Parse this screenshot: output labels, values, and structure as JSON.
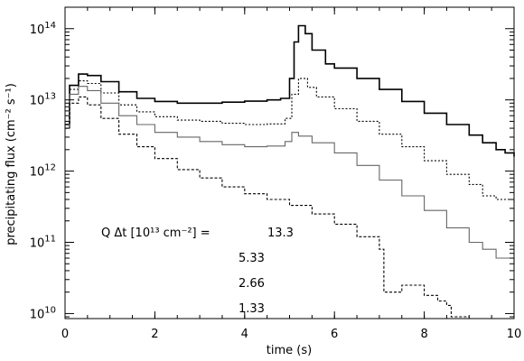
{
  "chart_data": {
    "type": "line",
    "xlabel": "time (s)",
    "ylabel": "precipitating flux (cm⁻² s⁻¹)",
    "xlim": [
      0,
      10
    ],
    "ylim": [
      8500000000.0,
      200000000000000.0
    ],
    "yscale": "log",
    "x_ticks": [
      0,
      2,
      4,
      6,
      8,
      10
    ],
    "x_tick_labels": [
      "0",
      "2",
      "4",
      "6",
      "8",
      "10"
    ],
    "y_ticks": [
      {
        "value": 10000000000.0,
        "base": "10",
        "exp": "10"
      },
      {
        "value": 100000000000.0,
        "base": "10",
        "exp": "11"
      },
      {
        "value": 1000000000000.0,
        "base": "10",
        "exp": "12"
      },
      {
        "value": 10000000000000.0,
        "base": "10",
        "exp": "13"
      },
      {
        "value": 100000000000000.0,
        "base": "10",
        "exp": "14"
      }
    ],
    "grid": false,
    "legend_title": "Q Δt [10¹³ cm⁻²] =",
    "series": [
      {
        "name": "13.3",
        "color": "#000000",
        "stroke_width": 1.6,
        "dash": "",
        "points": [
          [
            0,
            4500000000000.0
          ],
          [
            0.1,
            16000000000000.0
          ],
          [
            0.3,
            23000000000000.0
          ],
          [
            0.5,
            22000000000000.0
          ],
          [
            0.8,
            18000000000000.0
          ],
          [
            1.2,
            13000000000000.0
          ],
          [
            1.6,
            10500000000000.0
          ],
          [
            2.0,
            9500000000000.0
          ],
          [
            2.5,
            9000000000000.0
          ],
          [
            3.0,
            9000000000000.0
          ],
          [
            3.5,
            9300000000000.0
          ],
          [
            4.0,
            9600000000000.0
          ],
          [
            4.5,
            10000000000000.0
          ],
          [
            4.8,
            10500000000000.0
          ],
          [
            5.0,
            20000000000000.0
          ],
          [
            5.1,
            65000000000000.0
          ],
          [
            5.2,
            110000000000000.0
          ],
          [
            5.35,
            85000000000000.0
          ],
          [
            5.5,
            50000000000000.0
          ],
          [
            5.8,
            32000000000000.0
          ],
          [
            6.0,
            28000000000000.0
          ],
          [
            6.5,
            20000000000000.0
          ],
          [
            7.0,
            14000000000000.0
          ],
          [
            7.5,
            9500000000000.0
          ],
          [
            8.0,
            6500000000000.0
          ],
          [
            8.5,
            4500000000000.0
          ],
          [
            9.0,
            3200000000000.0
          ],
          [
            9.3,
            2500000000000.0
          ],
          [
            9.6,
            2000000000000.0
          ],
          [
            9.8,
            1800000000000.0
          ],
          [
            10.0,
            1600000000000.0
          ]
        ]
      },
      {
        "name": "5.33",
        "color": "#000000",
        "stroke_width": 1.1,
        "dash": "2,2",
        "points": [
          [
            0,
            4500000000000.0
          ],
          [
            0.1,
            14000000000000.0
          ],
          [
            0.3,
            18500000000000.0
          ],
          [
            0.5,
            17000000000000.0
          ],
          [
            0.8,
            12500000000000.0
          ],
          [
            1.2,
            8500000000000.0
          ],
          [
            1.6,
            6800000000000.0
          ],
          [
            2.0,
            5800000000000.0
          ],
          [
            2.5,
            5200000000000.0
          ],
          [
            3.0,
            5000000000000.0
          ],
          [
            3.5,
            4700000000000.0
          ],
          [
            4.0,
            4500000000000.0
          ],
          [
            4.5,
            4600000000000.0
          ],
          [
            4.9,
            5500000000000.0
          ],
          [
            5.05,
            12000000000000.0
          ],
          [
            5.2,
            20000000000000.0
          ],
          [
            5.4,
            15000000000000.0
          ],
          [
            5.6,
            11000000000000.0
          ],
          [
            6.0,
            7500000000000.0
          ],
          [
            6.5,
            5000000000000.0
          ],
          [
            7.0,
            3300000000000.0
          ],
          [
            7.5,
            2200000000000.0
          ],
          [
            8.0,
            1400000000000.0
          ],
          [
            8.5,
            900000000000.0
          ],
          [
            9.0,
            650000000000.0
          ],
          [
            9.3,
            450000000000.0
          ],
          [
            9.6,
            400000000000.0
          ],
          [
            10.0,
            350000000000.0
          ]
        ]
      },
      {
        "name": "2.66",
        "color": "#666666",
        "stroke_width": 1.1,
        "dash": "",
        "points": [
          [
            0,
            4000000000000.0
          ],
          [
            0.1,
            12000000000000.0
          ],
          [
            0.3,
            15500000000000.0
          ],
          [
            0.5,
            13500000000000.0
          ],
          [
            0.8,
            9000000000000.0
          ],
          [
            1.2,
            6000000000000.0
          ],
          [
            1.6,
            4500000000000.0
          ],
          [
            2.0,
            3500000000000.0
          ],
          [
            2.5,
            3000000000000.0
          ],
          [
            3.0,
            2600000000000.0
          ],
          [
            3.5,
            2350000000000.0
          ],
          [
            4.0,
            2200000000000.0
          ],
          [
            4.5,
            2250000000000.0
          ],
          [
            4.9,
            2600000000000.0
          ],
          [
            5.05,
            3500000000000.0
          ],
          [
            5.2,
            3100000000000.0
          ],
          [
            5.5,
            2500000000000.0
          ],
          [
            6.0,
            1800000000000.0
          ],
          [
            6.5,
            1200000000000.0
          ],
          [
            7.0,
            750000000000.0
          ],
          [
            7.5,
            450000000000.0
          ],
          [
            8.0,
            280000000000.0
          ],
          [
            8.5,
            160000000000.0
          ],
          [
            9.0,
            100000000000.0
          ],
          [
            9.3,
            80000000000.0
          ],
          [
            9.6,
            60000000000.0
          ],
          [
            10.0,
            50000000000.0
          ]
        ]
      },
      {
        "name": "1.33",
        "color": "#000000",
        "stroke_width": 1.1,
        "dash": "3,2",
        "points": [
          [
            0,
            4000000000000.0
          ],
          [
            0.1,
            9000000000000.0
          ],
          [
            0.3,
            11000000000000.0
          ],
          [
            0.5,
            8500000000000.0
          ],
          [
            0.8,
            5500000000000.0
          ],
          [
            1.2,
            3300000000000.0
          ],
          [
            1.6,
            2200000000000.0
          ],
          [
            2.0,
            1500000000000.0
          ],
          [
            2.5,
            1050000000000.0
          ],
          [
            3.0,
            800000000000.0
          ],
          [
            3.5,
            600000000000.0
          ],
          [
            4.0,
            480000000000.0
          ],
          [
            4.5,
            400000000000.0
          ],
          [
            5.0,
            330000000000.0
          ],
          [
            5.5,
            250000000000.0
          ],
          [
            6.0,
            180000000000.0
          ],
          [
            6.5,
            120000000000.0
          ],
          [
            7.0,
            80000000000.0
          ],
          [
            7.1,
            20000000000.0
          ],
          [
            7.5,
            25000000000.0
          ],
          [
            8.0,
            18000000000.0
          ],
          [
            8.3,
            15000000000.0
          ],
          [
            8.5,
            13000000000.0
          ],
          [
            8.6,
            9000000000.0
          ],
          [
            9.0,
            9000000000.0
          ]
        ]
      }
    ]
  }
}
